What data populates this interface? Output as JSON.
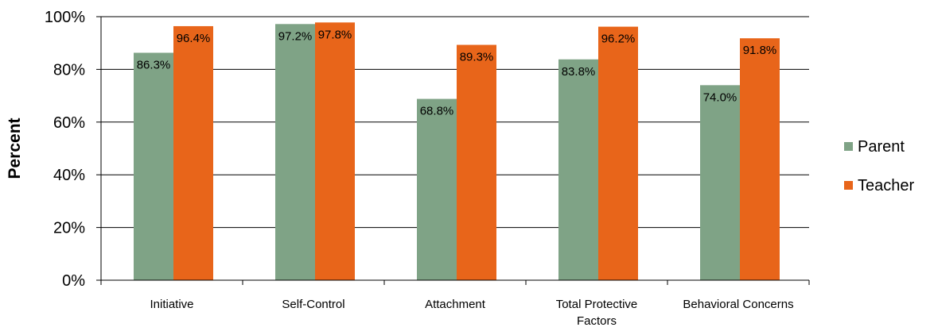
{
  "chart_data": {
    "type": "bar",
    "title": "",
    "xlabel": "",
    "ylabel": "Percent",
    "ylim": [
      0,
      100
    ],
    "yticks": [
      0,
      20,
      40,
      60,
      80,
      100
    ],
    "ytick_labels": [
      "0%",
      "20%",
      "40%",
      "60%",
      "80%",
      "100%"
    ],
    "grid": true,
    "legend": "right",
    "categories": [
      [
        "Initiative"
      ],
      [
        "Self-Control"
      ],
      [
        "Attachment"
      ],
      [
        "Total Protective",
        "Factors"
      ],
      [
        "Behavioral Concerns"
      ]
    ],
    "series": [
      {
        "name": "Parent",
        "color": "#7FA386",
        "values": [
          86.3,
          97.2,
          68.8,
          83.8,
          74.0
        ],
        "labels": [
          "86.3%",
          "97.2%",
          "68.8%",
          "83.8%",
          "74.0%"
        ]
      },
      {
        "name": "Teacher",
        "color": "#E8651A",
        "values": [
          96.4,
          97.8,
          89.3,
          96.2,
          91.8
        ],
        "labels": [
          "96.4%",
          "97.8%",
          "89.3%",
          "96.2%",
          "91.8%"
        ]
      }
    ]
  }
}
